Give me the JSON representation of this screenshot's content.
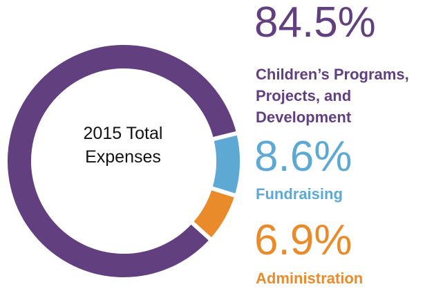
{
  "chart_data": {
    "type": "donut",
    "center_label": "2015 Total Expenses",
    "categories": [
      "Children’s Programs, Projects, and Development",
      "Fundraising",
      "Administration"
    ],
    "values": [
      84.5,
      8.6,
      6.9
    ],
    "value_labels": [
      "84.5%",
      "8.6%",
      "6.9%"
    ],
    "colors": [
      "#623f7f",
      "#5ea9d4",
      "#e98b2a"
    ]
  }
}
